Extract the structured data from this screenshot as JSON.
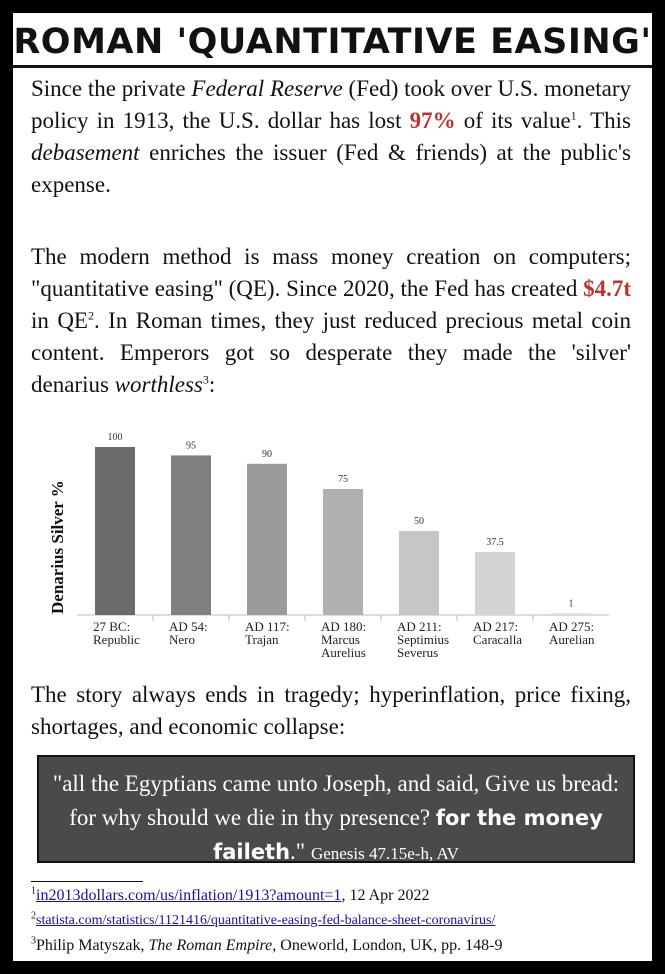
{
  "title": "ROMAN 'QUANTITATIVE EASING'",
  "para1": {
    "t1": "Since the private ",
    "fed_italic": "Federal Reserve",
    "t2": " (Fed) took over U.S. monetary policy in 1913, the U.S. dollar has lost ",
    "pct": "97%",
    "t3": " of its value",
    "sup1": "1",
    "t4": ". This ",
    "debasement": "debasement",
    "t5": " enriches the issuer (Fed & friends) at the public's expense."
  },
  "para2": {
    "t1": "The modern method is mass money creation on computers; \"quantitative easing\" (QE). Since 2020, the Fed has created ",
    "amount": "$4.7t",
    "t2": " in QE",
    "sup2": "2",
    "t3": ". In Roman times, they just reduced precious metal coin content. Emperors got so desperate they made the 'silver' denarius ",
    "worthless": "worthless",
    "sup3": "3",
    "t4": ":"
  },
  "chart_data": {
    "type": "bar",
    "ylabel": "Denarius Silver  %",
    "categories": [
      [
        "27 BC:",
        "Republic"
      ],
      [
        "AD 54:",
        "Nero"
      ],
      [
        "AD 117:",
        "Trajan"
      ],
      [
        "AD 180:",
        "Marcus",
        "Aurelius"
      ],
      [
        "AD 211:",
        "Septimius",
        "Severus"
      ],
      [
        "AD 217:",
        "Caracalla"
      ],
      [
        "AD 275:",
        "Aurelian"
      ]
    ],
    "values": [
      100,
      95,
      90,
      75,
      50,
      37.5,
      1
    ],
    "value_labels": [
      "100",
      "95",
      "90",
      "75",
      "50",
      "37.5",
      "1"
    ],
    "colors": [
      "#6b6b6b",
      "#808080",
      "#9b9b9b",
      "#b0b0b0",
      "#c6c6c6",
      "#d4d4d4",
      "#dcdcdc"
    ],
    "ylim": [
      0,
      100
    ],
    "grid": false
  },
  "para3": "The story always ends in tragedy; hyperinflation, price fixing, shortages, and economic collapse:",
  "quote": {
    "text": "\"all the Egyptians came unto Joseph, and said, Give us bread: for why should we die in thy presence? ",
    "bold": "for the money faileth",
    "end": ".\" ",
    "ref": "Genesis 47.15e-h, AV"
  },
  "footnotes": {
    "n1": "1",
    "link1": "in2013dollars.com/us/inflation/1913?amount=1",
    "date1": ", 12 Apr 2022",
    "n2": "2",
    "link2": "statista.com/statistics/1121416/quantitative-easing-fed-balance-sheet-coronavirus/",
    "n3": "3",
    "t3a": "Philip Matyszak, ",
    "book": "The Roman Empire",
    "t3b": ", Oneworld, London, UK, pp. 148-9"
  }
}
